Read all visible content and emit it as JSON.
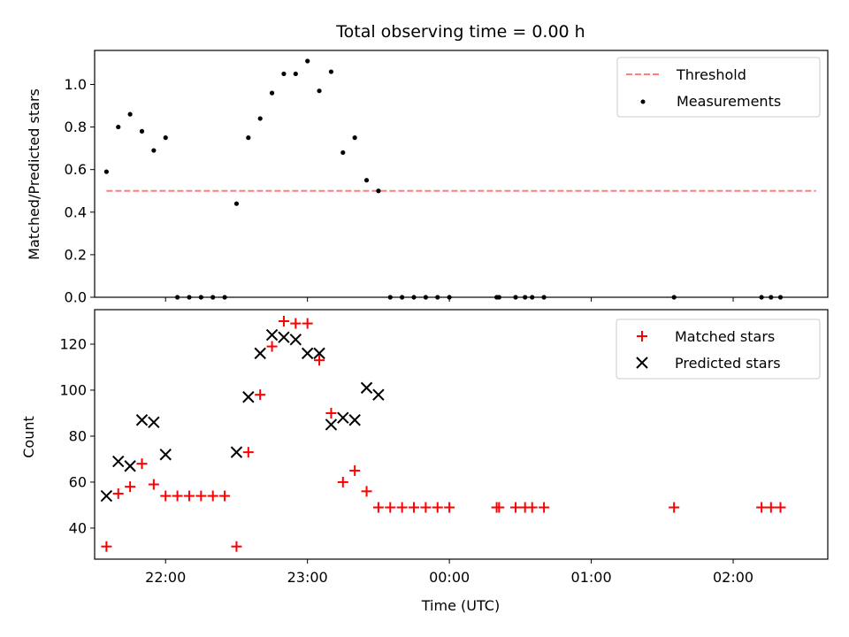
{
  "chart_data": [
    {
      "type": "scatter",
      "title": "Total observing time = 0.00 h",
      "ylabel": "Matched/Predicted stars",
      "xlabel": "",
      "xlim": [
        "21:30",
        "02:40"
      ],
      "ylim": [
        0,
        1.16
      ],
      "yticks": [
        0.0,
        0.2,
        0.4,
        0.6,
        0.8,
        1.0
      ],
      "ytick_labels": [
        "0.0",
        "0.2",
        "0.4",
        "0.6",
        "0.8",
        "1.0"
      ],
      "xticks": [
        "22:00",
        "23:00",
        "00:00",
        "01:00",
        "02:00"
      ],
      "legend_position": "upper right",
      "series": [
        {
          "name": "Threshold",
          "kind": "dashed-line",
          "color": "#ff7f7f",
          "x": [
            "21:35",
            "02:35"
          ],
          "y": [
            0.5,
            0.5
          ]
        },
        {
          "name": "Measurements",
          "kind": "dot",
          "color": "#000000",
          "x": [
            "21:35",
            "21:40",
            "21:45",
            "21:50",
            "21:55",
            "22:00",
            "22:05",
            "22:10",
            "22:15",
            "22:20",
            "22:25",
            "22:30",
            "22:35",
            "22:40",
            "22:45",
            "22:50",
            "22:55",
            "23:00",
            "23:05",
            "23:10",
            "23:15",
            "23:20",
            "23:25",
            "23:30",
            "23:35",
            "23:40",
            "23:45",
            "23:50",
            "23:55",
            "00:00",
            "00:20",
            "00:21",
            "00:28",
            "00:32",
            "00:35",
            "00:40",
            "01:35",
            "02:12",
            "02:16",
            "02:20"
          ],
          "y": [
            0.59,
            0.8,
            0.86,
            0.78,
            0.69,
            0.75,
            0.0,
            0.0,
            0.0,
            0.0,
            0.0,
            0.44,
            0.75,
            0.84,
            0.96,
            1.05,
            1.05,
            1.11,
            0.97,
            1.06,
            0.68,
            0.75,
            0.55,
            0.5,
            0.0,
            0.0,
            0.0,
            0.0,
            0.0,
            0.0,
            0.0,
            0.0,
            0.0,
            0.0,
            0.0,
            0.0,
            0.0,
            0.0,
            0.0,
            0.0
          ]
        }
      ]
    },
    {
      "type": "scatter",
      "title": "",
      "ylabel": "Count",
      "xlabel": "Time (UTC)",
      "xlim": [
        "21:30",
        "02:40"
      ],
      "ylim": [
        26.5,
        135
      ],
      "yticks": [
        40,
        60,
        80,
        100,
        120
      ],
      "ytick_labels": [
        "40",
        "60",
        "80",
        "100",
        "120"
      ],
      "xticks": [
        "22:00",
        "23:00",
        "00:00",
        "01:00",
        "02:00"
      ],
      "legend_position": "upper right",
      "series": [
        {
          "name": "Matched stars",
          "kind": "plus",
          "color": "#ff0000",
          "x": [
            "21:35",
            "21:40",
            "21:45",
            "21:50",
            "21:55",
            "22:00",
            "22:05",
            "22:10",
            "22:15",
            "22:20",
            "22:25",
            "22:30",
            "22:35",
            "22:40",
            "22:45",
            "22:50",
            "22:55",
            "23:00",
            "23:05",
            "23:10",
            "23:15",
            "23:20",
            "23:25",
            "23:30",
            "23:35",
            "23:40",
            "23:45",
            "23:50",
            "23:55",
            "00:00",
            "00:20",
            "00:21",
            "00:28",
            "00:32",
            "00:35",
            "00:40",
            "01:35",
            "02:12",
            "02:16",
            "02:20"
          ],
          "y": [
            32,
            55,
            58,
            68,
            59,
            54,
            54,
            54,
            54,
            54,
            54,
            32,
            73,
            98,
            119,
            130,
            129,
            129,
            113,
            90,
            60,
            65,
            56,
            49,
            49,
            49,
            49,
            49,
            49,
            49,
            49,
            49,
            49,
            49,
            49,
            49,
            49,
            49,
            49,
            49
          ]
        },
        {
          "name": "Predicted stars",
          "kind": "x",
          "color": "#000000",
          "x": [
            "21:35",
            "21:40",
            "21:45",
            "21:50",
            "21:55",
            "22:00",
            "22:30",
            "22:35",
            "22:40",
            "22:45",
            "22:50",
            "22:55",
            "23:00",
            "23:05",
            "23:10",
            "23:15",
            "23:20",
            "23:25",
            "23:30"
          ],
          "y": [
            54,
            69,
            67,
            87,
            86,
            72,
            73,
            97,
            116,
            124,
            123,
            122,
            116,
            116,
            85,
            88,
            87,
            101,
            98
          ]
        }
      ]
    }
  ]
}
